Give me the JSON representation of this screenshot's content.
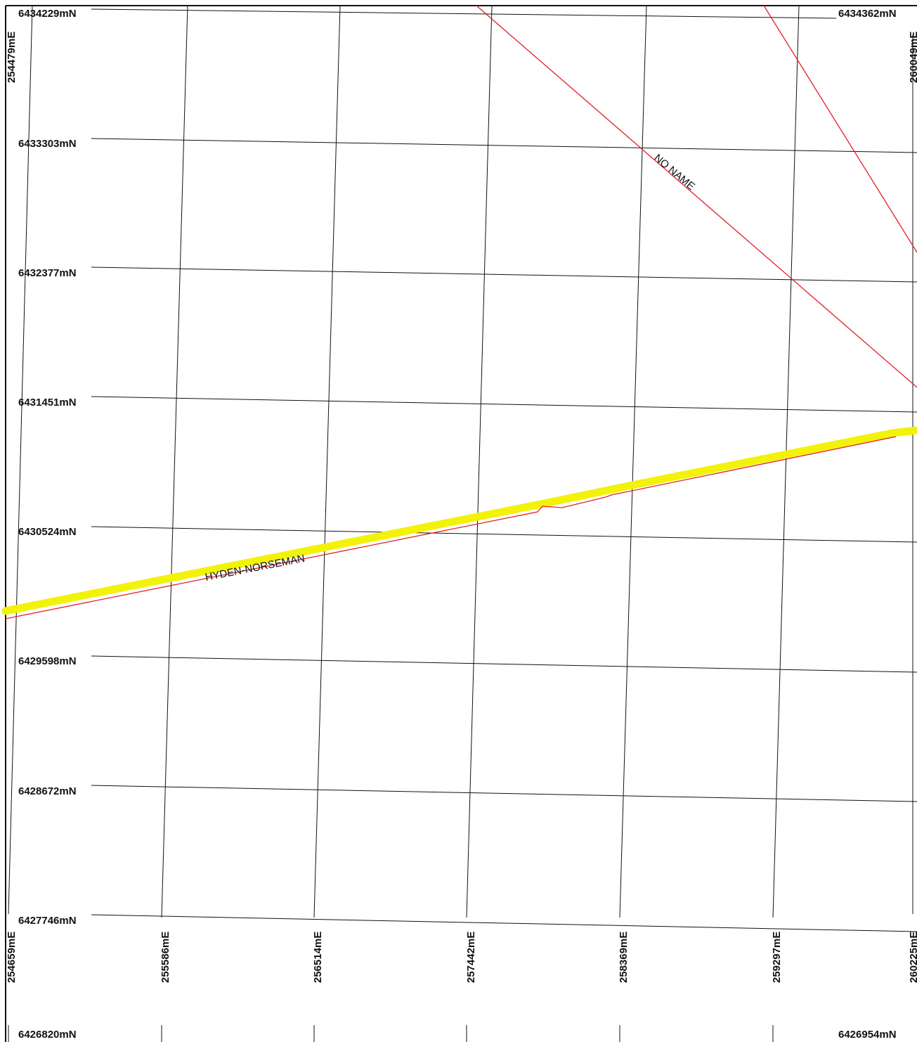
{
  "map": {
    "colors": {
      "grid": "#111111",
      "road_centerline": "#e0202a",
      "road_highlight": "#f2f20a",
      "frame": "#111111"
    },
    "northing_labels": [
      "6434229mN",
      "6434362mN",
      "6433303mN",
      "6432377mN",
      "6431451mN",
      "6430524mN",
      "6429598mN",
      "6428672mN",
      "6427746mN",
      "6426820mN",
      "6426954mN"
    ],
    "easting_labels": [
      "254479mE",
      "260049mE",
      "254659mE",
      "255586mE",
      "256514mE",
      "257442mE",
      "258369mE",
      "259297mE",
      "260225mE"
    ],
    "roads": [
      {
        "name": "NO NAME",
        "highlighted": false
      },
      {
        "name": "HYDEN-NORSEMAN",
        "highlighted": true
      },
      {
        "name": "",
        "highlighted": false
      }
    ]
  }
}
